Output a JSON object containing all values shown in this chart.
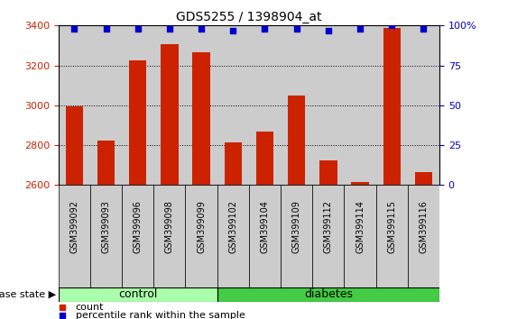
{
  "title": "GDS5255 / 1398904_at",
  "samples": [
    "GSM399092",
    "GSM399093",
    "GSM399096",
    "GSM399098",
    "GSM399099",
    "GSM399102",
    "GSM399104",
    "GSM399109",
    "GSM399112",
    "GSM399114",
    "GSM399115",
    "GSM399116"
  ],
  "counts": [
    2995,
    2825,
    3225,
    3305,
    3265,
    2815,
    2870,
    3050,
    2725,
    2615,
    3390,
    2665
  ],
  "percentile_ranks": [
    98,
    98,
    98,
    98,
    98,
    97,
    98,
    98,
    97,
    98,
    100,
    98
  ],
  "groups": [
    "control",
    "control",
    "control",
    "control",
    "control",
    "diabetes",
    "diabetes",
    "diabetes",
    "diabetes",
    "diabetes",
    "diabetes",
    "diabetes"
  ],
  "ylim": [
    2600,
    3400
  ],
  "yticks": [
    2600,
    2800,
    3000,
    3200,
    3400
  ],
  "right_yticks": [
    0,
    25,
    50,
    75,
    100
  ],
  "right_yticklabels": [
    "0",
    "25",
    "50",
    "75",
    "100%"
  ],
  "bar_color": "#cc2200",
  "percentile_color": "#0000cc",
  "control_color": "#aaffaa",
  "diabetes_color": "#44cc44",
  "bg_color": "#cccccc",
  "legend_bar_label": "count",
  "legend_pct_label": "percentile rank within the sample",
  "group_label": "disease state",
  "bar_width": 0.55
}
